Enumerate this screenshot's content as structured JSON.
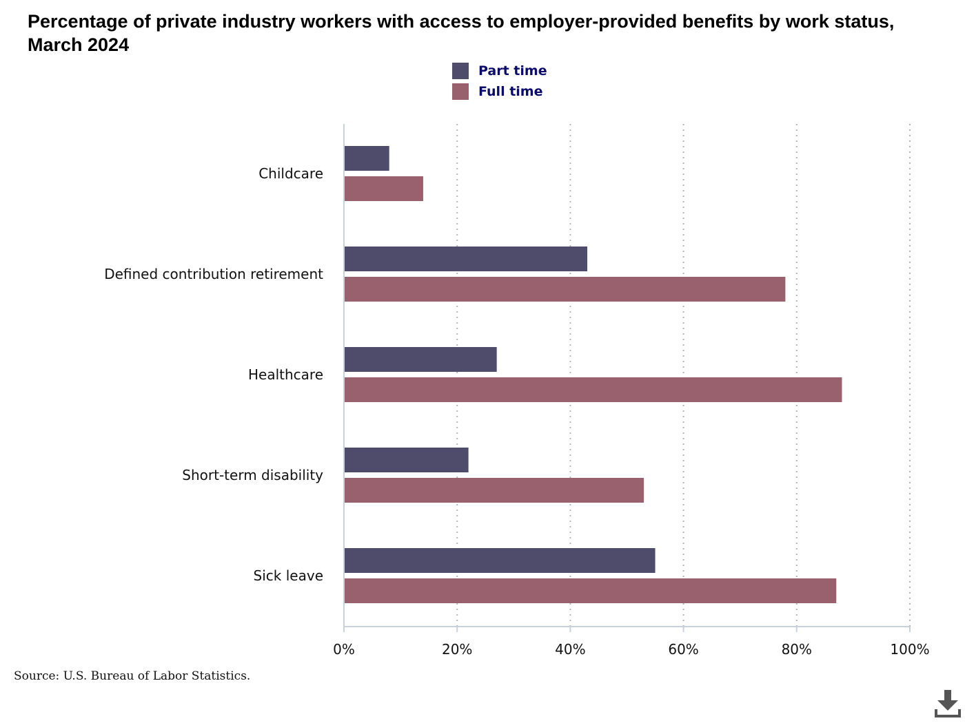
{
  "title": "Percentage of private industry workers with access to employer-provided benefits by work status, March 2024",
  "source": "Source: U.S. Bureau of Labor Statistics.",
  "download_icon": "download-icon",
  "colors": {
    "part_time": "#4f4b6a",
    "full_time": "#99606d",
    "axis": "#c8d2de",
    "grid": "#b5b5b5"
  },
  "chart_data": {
    "type": "bar",
    "orientation": "horizontal",
    "categories": [
      "Childcare",
      "Defined contribution retirement",
      "Healthcare",
      "Short-term disability",
      "Sick leave"
    ],
    "series": [
      {
        "name": "Part time",
        "values": [
          8,
          43,
          27,
          22,
          55
        ]
      },
      {
        "name": "Full time",
        "values": [
          14,
          78,
          88,
          53,
          87
        ]
      }
    ],
    "xlim": [
      0,
      100
    ],
    "xticks": [
      "0%",
      "20%",
      "40%",
      "60%",
      "80%",
      "100%"
    ],
    "grid": true,
    "legend": "top-center"
  }
}
